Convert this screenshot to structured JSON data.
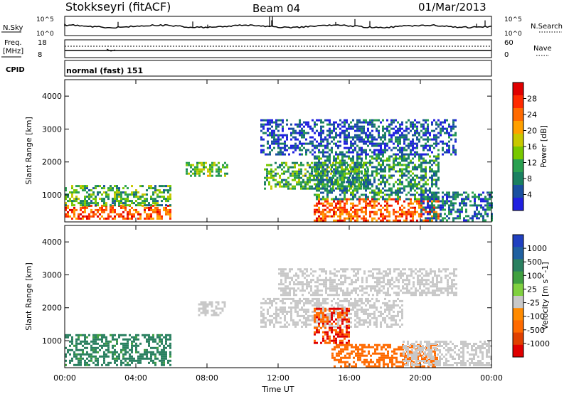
{
  "header": {
    "station": "Stokkseyri (fitACF)",
    "beam": "Beam 04",
    "date": "01/Mar/2013"
  },
  "status_panels": {
    "nsky_label": "N.Sky",
    "nsearch_label": "N.Search",
    "noise_ticks_left": [
      "10^5",
      "10^0"
    ],
    "noise_ticks_right": [
      "10^5",
      "10^0"
    ],
    "freq_label_1": "Freq.",
    "freq_label_2": "[MHz]",
    "freq_ticks": [
      "18",
      "8"
    ],
    "nave_label": "Nave",
    "nave_ticks": [
      "60",
      "0"
    ],
    "cpid_label": "CPID",
    "cpid_value": "normal (fast) 151"
  },
  "colorbar_power": {
    "label": "Power [dB]",
    "ticks": [
      "28",
      "24",
      "20",
      "16",
      "12",
      "8",
      "4"
    ],
    "colors": [
      "#e00000",
      "#ff2a00",
      "#ff6a00",
      "#ffa000",
      "#c8c800",
      "#78c800",
      "#2aa050",
      "#1a8060",
      "#1a50a0",
      "#2020e0"
    ]
  },
  "colorbar_velocity": {
    "label": "Velocity [m s^-1]",
    "ticks": [
      "1000",
      "500",
      "100",
      "25",
      "-25",
      "-100",
      "-500",
      "-1000"
    ],
    "colors": [
      "#2040c0",
      "#2060a0",
      "#2a8060",
      "#40a040",
      "#80d040",
      "#c8c8c8",
      "#ff8a00",
      "#ff6a00",
      "#e04000",
      "#e00000"
    ]
  },
  "axes": {
    "ylabel": "Slant Range [km]",
    "xlabel": "Time UT",
    "xticks": [
      "00:00",
      "04:00",
      "08:00",
      "12:00",
      "16:00",
      "20:00",
      "00:00"
    ],
    "yticks": [
      "1000",
      "2000",
      "3000",
      "4000"
    ]
  },
  "chart_data": [
    {
      "type": "heatmap",
      "name": "Power [dB]",
      "x_units": "hours UT",
      "y_units": "km",
      "xlim": [
        0,
        24
      ],
      "ylim": [
        180,
        4500
      ],
      "regions": [
        {
          "x": [
            0,
            6
          ],
          "y": [
            250,
            700
          ],
          "level": 24
        },
        {
          "x": [
            0,
            6
          ],
          "y": [
            700,
            1300
          ],
          "level": 12
        },
        {
          "x": [
            6.8,
            9.2
          ],
          "y": [
            1550,
            2000
          ],
          "level": 14
        },
        {
          "x": [
            11.2,
            17
          ],
          "y": [
            1200,
            2000
          ],
          "level": 12
        },
        {
          "x": [
            14,
            21
          ],
          "y": [
            250,
            900
          ],
          "level": 24
        },
        {
          "x": [
            14,
            21
          ],
          "y": [
            900,
            2200
          ],
          "level": 10
        },
        {
          "x": [
            20,
            24
          ],
          "y": [
            250,
            1100
          ],
          "level": 8
        },
        {
          "x": [
            11,
            22
          ],
          "y": [
            2200,
            3300
          ],
          "level": 6
        }
      ]
    },
    {
      "type": "heatmap",
      "name": "Velocity [m s^-1]",
      "x_units": "hours UT",
      "y_units": "km",
      "xlim": [
        0,
        24
      ],
      "ylim": [
        180,
        4500
      ],
      "regions": [
        {
          "x": [
            0,
            6
          ],
          "y": [
            250,
            1200
          ],
          "level": 100
        },
        {
          "x": [
            7.5,
            9
          ],
          "y": [
            1800,
            2200
          ],
          "level": 0
        },
        {
          "x": [
            11,
            19
          ],
          "y": [
            1400,
            2300
          ],
          "level": 0
        },
        {
          "x": [
            15,
            21
          ],
          "y": [
            250,
            900
          ],
          "level": -300
        },
        {
          "x": [
            14,
            16
          ],
          "y": [
            900,
            2000
          ],
          "level": -500
        },
        {
          "x": [
            19,
            24
          ],
          "y": [
            250,
            1000
          ],
          "level": 0
        },
        {
          "x": [
            12,
            22
          ],
          "y": [
            2400,
            3200
          ],
          "level": 0
        }
      ]
    }
  ]
}
